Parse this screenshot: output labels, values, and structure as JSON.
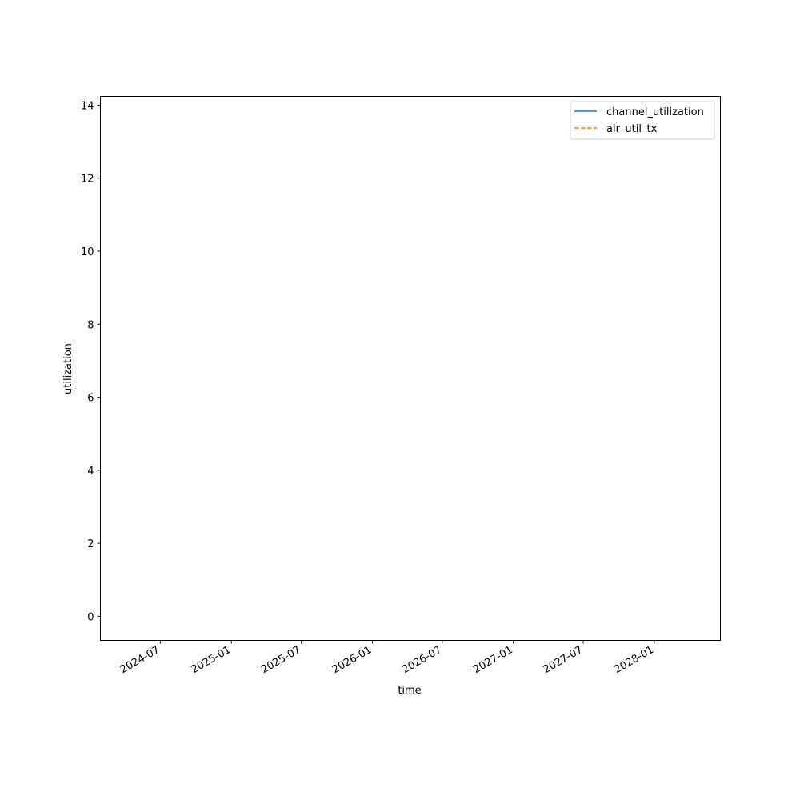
{
  "chart_data": {
    "type": "line",
    "title": "",
    "xlabel": "time",
    "ylabel": "utilization",
    "x_type": "date",
    "xlim": [
      "2024-01-28",
      "2028-06-20"
    ],
    "ylim": [
      -0.66,
      14.24
    ],
    "x_ticks": [
      "2024-07",
      "2025-01",
      "2025-07",
      "2026-01",
      "2026-07",
      "2027-01",
      "2027-07",
      "2028-01"
    ],
    "y_ticks": [
      0,
      2,
      4,
      6,
      8,
      10,
      12,
      14
    ],
    "grid": false,
    "legend_placement": "top-right",
    "series": [
      {
        "name": "channel_utilization",
        "color": "#1f77b4",
        "linestyle": "solid",
        "x": [],
        "y": []
      },
      {
        "name": "air_util_tx",
        "color": "#ff7f0e",
        "linestyle": "dashed",
        "x": [],
        "y": []
      }
    ]
  }
}
